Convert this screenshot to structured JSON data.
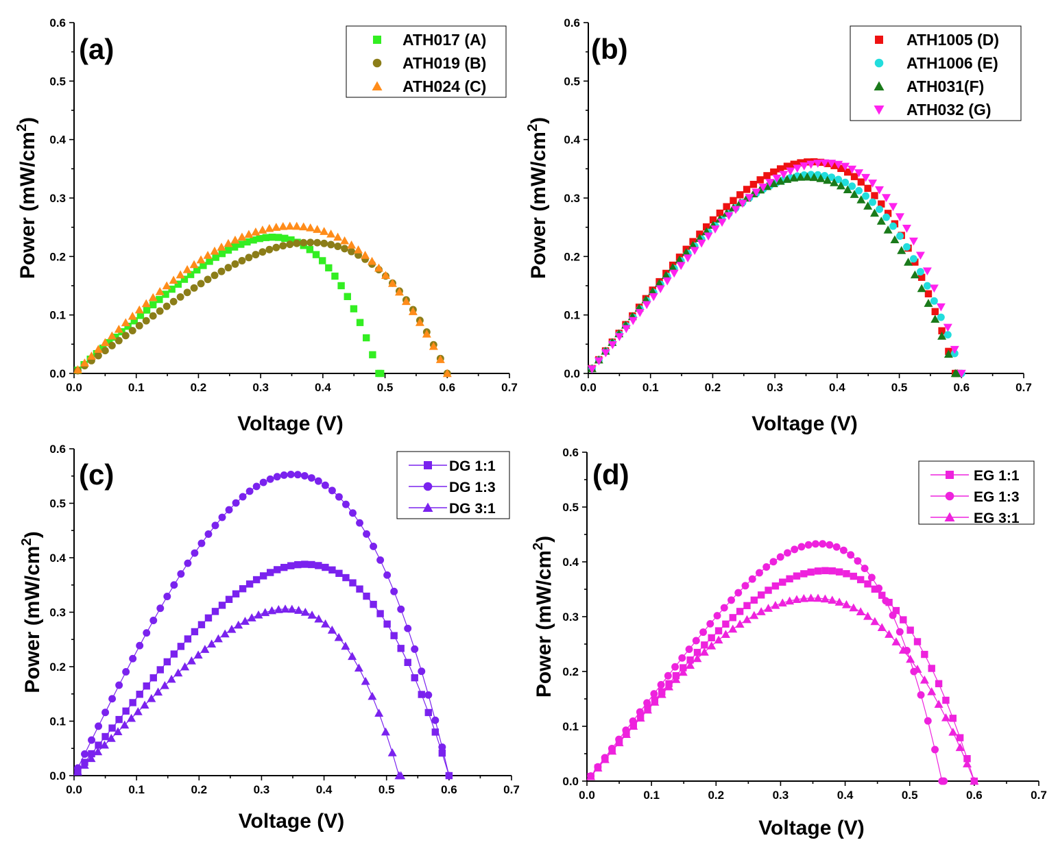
{
  "chart_data": [
    {
      "panel": "(a)",
      "type": "scatter",
      "xlabel": "Voltage (V)",
      "ylabel": "Power (mW/cm",
      "ylabel_sup": "2",
      "ylabel_end": ")",
      "xlim": [
        0.0,
        0.7
      ],
      "ylim": [
        0.0,
        0.6
      ],
      "xticks": [
        "0.0",
        "0.1",
        "0.2",
        "0.3",
        "0.4",
        "0.5",
        "0.6",
        "0.7"
      ],
      "yticks": [
        "0.0",
        "0.1",
        "0.2",
        "0.3",
        "0.4",
        "0.5",
        "0.6"
      ],
      "legend_position": "top-right",
      "series": [
        {
          "name": "ATH017 (A)",
          "color": "#33ee22",
          "marker": "square",
          "voc": 0.49,
          "vmp": 0.32,
          "pmax": 0.233,
          "points": 49
        },
        {
          "name": "ATH019 (B)",
          "color": "#8b7d18",
          "marker": "circle",
          "voc": 0.6,
          "vmp": 0.38,
          "pmax": 0.224,
          "points": 55
        },
        {
          "name": "ATH024 (C)",
          "color": "#ff8c1a",
          "marker": "triangle-up",
          "voc": 0.6,
          "vmp": 0.35,
          "pmax": 0.252,
          "points": 55
        }
      ]
    },
    {
      "panel": "(b)",
      "type": "scatter",
      "xlabel": "Voltage (V)",
      "ylabel": "Power (mW/cm",
      "ylabel_sup": "2",
      "ylabel_end": ")",
      "xlim": [
        0.0,
        0.7
      ],
      "ylim": [
        0.0,
        0.6
      ],
      "xticks": [
        "0.0",
        "0.1",
        "0.2",
        "0.3",
        "0.4",
        "0.5",
        "0.6",
        "0.7"
      ],
      "yticks": [
        "0.0",
        "0.1",
        "0.2",
        "0.3",
        "0.4",
        "0.5",
        "0.6"
      ],
      "legend_position": "top-right",
      "series": [
        {
          "name": "ATH1005 (D)",
          "color": "#ee1111",
          "marker": "square",
          "voc": 0.59,
          "vmp": 0.36,
          "pmax": 0.362,
          "points": 55
        },
        {
          "name": "ATH1006 (E)",
          "color": "#22dddd",
          "marker": "circle",
          "voc": 0.6,
          "vmp": 0.36,
          "pmax": 0.34,
          "points": 55
        },
        {
          "name": "ATH031(F)",
          "color": "#1a7a1a",
          "marker": "triangle-up",
          "voc": 0.59,
          "vmp": 0.35,
          "pmax": 0.336,
          "points": 55
        },
        {
          "name": "ATH032 (G)",
          "color": "#ff22ee",
          "marker": "triangle-down",
          "voc": 0.6,
          "vmp": 0.38,
          "pmax": 0.36,
          "points": 55
        }
      ]
    },
    {
      "panel": "(c)",
      "type": "line",
      "xlabel": "Voltage (V)",
      "ylabel": "Power (mW/cm",
      "ylabel_sup": "2",
      "ylabel_end": ")",
      "xlim": [
        0.0,
        0.7
      ],
      "ylim": [
        0.0,
        0.6
      ],
      "xticks": [
        "0.0",
        "0.1",
        "0.2",
        "0.3",
        "0.4",
        "0.5",
        "0.6",
        "0.7"
      ],
      "yticks": [
        "0.0",
        "0.1",
        "0.2",
        "0.3",
        "0.4",
        "0.5",
        "0.6"
      ],
      "legend_position": "top-right",
      "series": [
        {
          "name": "DG 1:1",
          "color": "#7a22ee",
          "marker": "square",
          "voc": 0.6,
          "vmp": 0.37,
          "pmax": 0.388,
          "points": 55
        },
        {
          "name": "DG 1:3",
          "color": "#7a22ee",
          "marker": "circle",
          "voc": 0.6,
          "vmp": 0.35,
          "pmax": 0.553,
          "points": 55
        },
        {
          "name": "DG 3:1",
          "color": "#7a22ee",
          "marker": "triangle-up",
          "voc": 0.52,
          "vmp": 0.34,
          "pmax": 0.306,
          "points": 49
        }
      ]
    },
    {
      "panel": "(d)",
      "type": "line",
      "xlabel": "Voltage (V)",
      "ylabel": "Power (mW/cm",
      "ylabel_sup": "2",
      "ylabel_end": ")",
      "xlim": [
        0.0,
        0.7
      ],
      "ylim": [
        0.0,
        0.6
      ],
      "xticks": [
        "0.0",
        "0.1",
        "0.2",
        "0.3",
        "0.4",
        "0.5",
        "0.6",
        "0.7"
      ],
      "yticks": [
        "0.0",
        "0.1",
        "0.2",
        "0.3",
        "0.4",
        "0.5",
        "0.6"
      ],
      "legend_position": "top-right",
      "series": [
        {
          "name": "EG 1:1",
          "color": "#ee22dd",
          "marker": "square",
          "voc": 0.6,
          "vmp": 0.37,
          "pmax": 0.384,
          "points": 55
        },
        {
          "name": "EG 1:3",
          "color": "#ee22dd",
          "marker": "circle",
          "voc": 0.55,
          "vmp": 0.36,
          "pmax": 0.433,
          "points": 51
        },
        {
          "name": "EG 3:1",
          "color": "#ee22dd",
          "marker": "triangle-up",
          "voc": 0.6,
          "vmp": 0.35,
          "pmax": 0.334,
          "points": 55
        }
      ]
    }
  ]
}
